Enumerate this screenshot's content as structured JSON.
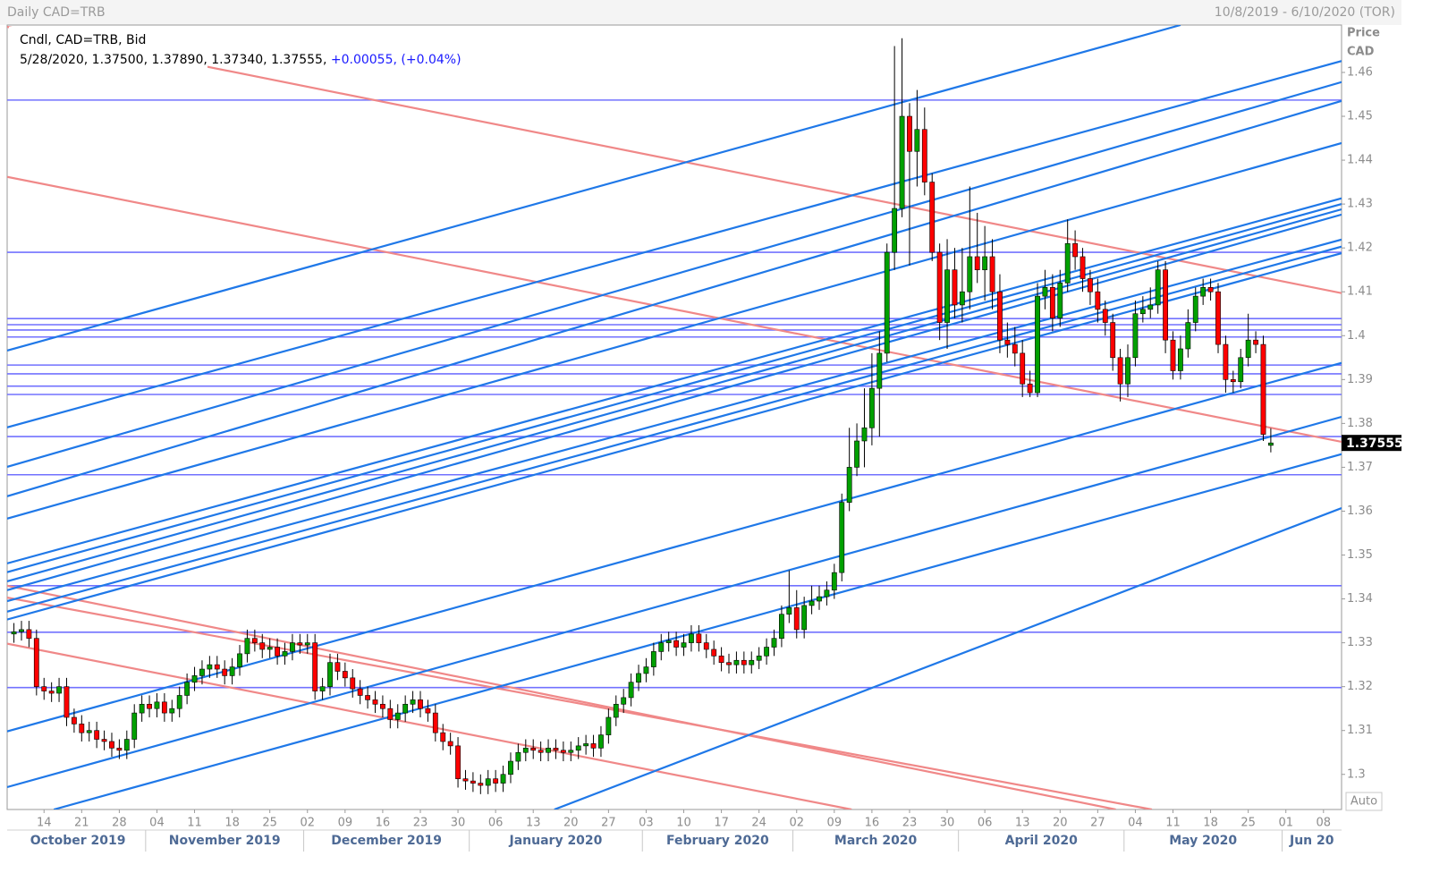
{
  "chart_data": {
    "type": "candlestick",
    "title": "Daily CAD=TRB",
    "subtitle": "10/8/2019 - 6/10/2020 (TOR)",
    "legend_title": "Cndl, CAD=TRB, Bid",
    "legend_text": "5/28/2020, 1.37500, 1.37890, 1.37340, 1.37555,",
    "legend_change": "+0.00055, (+0.04%)",
    "y_label": [
      "Price",
      "CAD"
    ],
    "button": "Auto",
    "up_color": "#00a000",
    "down_color": "#ff0000",
    "hline_color": "#7272ff",
    "trend_color": "#1f78e8",
    "red_trend_color": "#f08888",
    "xlim": [
      -0.9,
      176.4
    ],
    "ylim": [
      1.292,
      1.4708
    ],
    "yticks": [
      1.3,
      1.31,
      1.32,
      1.33,
      1.34,
      1.35,
      1.36,
      1.37,
      1.38,
      1.39,
      1.4,
      1.41,
      1.42,
      1.43,
      1.44,
      1.45,
      1.46
    ],
    "xticks": [
      {
        "value": 4,
        "label": "14"
      },
      {
        "value": 9,
        "label": "21"
      },
      {
        "value": 14,
        "label": "28"
      },
      {
        "value": 19,
        "label": "04"
      },
      {
        "value": 24,
        "label": "11"
      },
      {
        "value": 29,
        "label": "18"
      },
      {
        "value": 34,
        "label": "25"
      },
      {
        "value": 39,
        "label": "02"
      },
      {
        "value": 44,
        "label": "09"
      },
      {
        "value": 49,
        "label": "16"
      },
      {
        "value": 54,
        "label": "23"
      },
      {
        "value": 59,
        "label": "30"
      },
      {
        "value": 64,
        "label": "06"
      },
      {
        "value": 69,
        "label": "13"
      },
      {
        "value": 74,
        "label": "20"
      },
      {
        "value": 79,
        "label": "27"
      },
      {
        "value": 84,
        "label": "03"
      },
      {
        "value": 89,
        "label": "10"
      },
      {
        "value": 94,
        "label": "17"
      },
      {
        "value": 99,
        "label": "24"
      },
      {
        "value": 104,
        "label": "02"
      },
      {
        "value": 109,
        "label": "09"
      },
      {
        "value": 114,
        "label": "16"
      },
      {
        "value": 119,
        "label": "23"
      },
      {
        "value": 124,
        "label": "30"
      },
      {
        "value": 129,
        "label": "06"
      },
      {
        "value": 134,
        "label": "13"
      },
      {
        "value": 139,
        "label": "20"
      },
      {
        "value": 144,
        "label": "27"
      },
      {
        "value": 149,
        "label": "04"
      },
      {
        "value": 154,
        "label": "11"
      },
      {
        "value": 159,
        "label": "18"
      },
      {
        "value": 164,
        "label": "25"
      },
      {
        "value": 169,
        "label": "01"
      },
      {
        "value": 174,
        "label": "08"
      }
    ],
    "months": [
      {
        "value": 0,
        "label": "October 2019"
      },
      {
        "value": 18,
        "label": "November 2019"
      },
      {
        "value": 39,
        "label": "December 2019"
      },
      {
        "value": 61,
        "label": "January 2020"
      },
      {
        "value": 84,
        "label": "February 2020"
      },
      {
        "value": 104,
        "label": "March 2020"
      },
      {
        "value": 126,
        "label": "April 2020"
      },
      {
        "value": 148,
        "label": "May 2020"
      },
      {
        "value": 169,
        "label": "Jun 20"
      }
    ],
    "x": [
      0,
      1,
      2,
      3,
      4,
      5,
      6,
      7,
      8,
      9,
      10,
      11,
      12,
      13,
      14,
      15,
      16,
      17,
      18,
      19,
      20,
      21,
      22,
      23,
      24,
      25,
      26,
      27,
      28,
      29,
      30,
      31,
      32,
      33,
      34,
      35,
      36,
      37,
      38,
      39,
      40,
      41,
      42,
      43,
      44,
      45,
      46,
      47,
      48,
      49,
      50,
      51,
      52,
      53,
      54,
      55,
      56,
      57,
      58,
      59,
      60,
      61,
      62,
      63,
      64,
      65,
      66,
      67,
      68,
      69,
      70,
      71,
      72,
      73,
      74,
      75,
      76,
      77,
      78,
      79,
      80,
      81,
      82,
      83,
      84,
      85,
      86,
      87,
      88,
      89,
      90,
      91,
      92,
      93,
      94,
      95,
      96,
      97,
      98,
      99,
      100,
      101,
      102,
      103,
      104,
      105,
      106,
      107,
      108,
      109,
      110,
      111,
      112,
      113,
      114,
      115,
      116,
      117,
      118,
      119,
      120,
      121,
      122,
      123,
      124,
      125,
      126,
      127,
      128,
      129,
      130,
      131,
      132,
      133,
      134,
      135,
      136,
      137,
      138,
      139,
      140,
      141,
      142,
      143,
      144,
      145,
      146,
      147,
      148,
      149,
      150,
      151,
      152,
      153,
      154,
      155,
      156,
      157,
      158,
      159,
      160,
      161,
      162,
      163,
      164,
      165,
      166,
      167
    ],
    "open": [
      1.332,
      1.3325,
      1.333,
      1.331,
      1.32,
      1.319,
      1.3185,
      1.32,
      1.313,
      1.3115,
      1.3095,
      1.31,
      1.308,
      1.3075,
      1.306,
      1.3055,
      1.308,
      1.314,
      1.316,
      1.315,
      1.3165,
      1.314,
      1.315,
      1.318,
      1.321,
      1.3225,
      1.324,
      1.325,
      1.324,
      1.3225,
      1.3245,
      1.3275,
      1.331,
      1.33,
      1.3285,
      1.329,
      1.327,
      1.328,
      1.33,
      1.3295,
      1.33,
      1.319,
      1.32,
      1.3255,
      1.3235,
      1.322,
      1.3195,
      1.318,
      1.317,
      1.316,
      1.315,
      1.3125,
      1.314,
      1.316,
      1.317,
      1.315,
      1.314,
      1.3095,
      1.3075,
      1.3065,
      1.299,
      1.2985,
      1.298,
      1.2975,
      1.299,
      1.298,
      1.3,
      1.303,
      1.305,
      1.306,
      1.3055,
      1.305,
      1.306,
      1.3055,
      1.305,
      1.3055,
      1.3065,
      1.307,
      1.306,
      1.309,
      1.313,
      1.316,
      1.3175,
      1.321,
      1.323,
      1.3245,
      1.328,
      1.33,
      1.3305,
      1.329,
      1.33,
      1.332,
      1.33,
      1.3285,
      1.327,
      1.3255,
      1.325,
      1.326,
      1.325,
      1.326,
      1.327,
      1.329,
      1.331,
      1.3365,
      1.338,
      1.333,
      1.3385,
      1.3395,
      1.3405,
      1.342,
      1.346,
      1.362,
      1.37,
      1.376,
      1.379,
      1.388,
      1.396,
      1.419,
      1.429,
      1.45,
      1.442,
      1.447,
      1.435,
      1.419,
      1.403,
      1.415,
      1.407,
      1.41,
      1.418,
      1.415,
      1.418,
      1.41,
      1.399,
      1.398,
      1.396,
      1.389,
      1.387,
      1.409,
      1.411,
      1.404,
      1.412,
      1.421,
      1.418,
      1.413,
      1.41,
      1.406,
      1.403,
      1.395,
      1.389,
      1.395,
      1.405,
      1.406,
      1.407,
      1.415,
      1.399,
      1.392,
      1.397,
      1.403,
      1.409,
      1.411,
      1.41,
      1.398,
      1.39,
      1.3895,
      1.395,
      1.399,
      1.398,
      1.375
    ],
    "high": [
      1.3345,
      1.335,
      1.335,
      1.333,
      1.322,
      1.321,
      1.322,
      1.322,
      1.315,
      1.3135,
      1.312,
      1.312,
      1.31,
      1.3095,
      1.308,
      1.31,
      1.316,
      1.318,
      1.318,
      1.3185,
      1.3185,
      1.317,
      1.32,
      1.323,
      1.3245,
      1.326,
      1.327,
      1.327,
      1.326,
      1.3265,
      1.3295,
      1.333,
      1.333,
      1.332,
      1.331,
      1.331,
      1.33,
      1.332,
      1.332,
      1.332,
      1.332,
      1.322,
      1.3275,
      1.3275,
      1.3255,
      1.324,
      1.3215,
      1.32,
      1.319,
      1.318,
      1.317,
      1.316,
      1.318,
      1.319,
      1.319,
      1.317,
      1.316,
      1.3115,
      1.3095,
      1.3085,
      1.301,
      1.3005,
      1.3,
      1.301,
      1.301,
      1.302,
      1.305,
      1.307,
      1.308,
      1.308,
      1.3075,
      1.308,
      1.308,
      1.3075,
      1.3075,
      1.3085,
      1.309,
      1.309,
      1.311,
      1.315,
      1.318,
      1.3195,
      1.323,
      1.325,
      1.3265,
      1.33,
      1.332,
      1.3325,
      1.3325,
      1.332,
      1.334,
      1.334,
      1.332,
      1.3305,
      1.329,
      1.3275,
      1.328,
      1.328,
      1.328,
      1.329,
      1.331,
      1.333,
      1.3385,
      1.3465,
      1.342,
      1.3405,
      1.343,
      1.343,
      1.344,
      1.348,
      1.364,
      1.379,
      1.38,
      1.388,
      1.396,
      1.401,
      1.421,
      1.466,
      1.4678,
      1.453,
      1.456,
      1.452,
      1.437,
      1.421,
      1.422,
      1.42,
      1.42,
      1.434,
      1.428,
      1.425,
      1.422,
      1.414,
      1.403,
      1.402,
      1.399,
      1.392,
      1.412,
      1.415,
      1.414,
      1.415,
      1.4265,
      1.424,
      1.42,
      1.415,
      1.413,
      1.408,
      1.405,
      1.397,
      1.398,
      1.408,
      1.409,
      1.411,
      1.417,
      1.417,
      1.401,
      1.4,
      1.406,
      1.411,
      1.413,
      1.413,
      1.412,
      1.4,
      1.392,
      1.397,
      1.405,
      1.401,
      1.4,
      1.3789
    ],
    "low": [
      1.33,
      1.3305,
      1.329,
      1.318,
      1.317,
      1.3165,
      1.3165,
      1.311,
      1.3095,
      1.3075,
      1.3075,
      1.306,
      1.3055,
      1.304,
      1.3035,
      1.3035,
      1.306,
      1.312,
      1.313,
      1.313,
      1.312,
      1.312,
      1.313,
      1.316,
      1.319,
      1.3205,
      1.322,
      1.322,
      1.3205,
      1.3205,
      1.3225,
      1.3255,
      1.328,
      1.3265,
      1.3265,
      1.325,
      1.325,
      1.326,
      1.3275,
      1.3275,
      1.317,
      1.317,
      1.318,
      1.3215,
      1.32,
      1.3175,
      1.316,
      1.315,
      1.314,
      1.313,
      1.3105,
      1.3105,
      1.312,
      1.314,
      1.313,
      1.312,
      1.3075,
      1.3055,
      1.3045,
      1.297,
      1.2965,
      1.296,
      1.2955,
      1.2955,
      1.296,
      1.296,
      1.298,
      1.301,
      1.303,
      1.3035,
      1.303,
      1.303,
      1.3035,
      1.303,
      1.303,
      1.3035,
      1.3045,
      1.304,
      1.304,
      1.307,
      1.311,
      1.314,
      1.3155,
      1.319,
      1.321,
      1.3225,
      1.326,
      1.328,
      1.327,
      1.327,
      1.328,
      1.328,
      1.3265,
      1.325,
      1.3235,
      1.323,
      1.323,
      1.323,
      1.323,
      1.324,
      1.325,
      1.327,
      1.329,
      1.3345,
      1.331,
      1.331,
      1.3365,
      1.3375,
      1.3385,
      1.34,
      1.344,
      1.36,
      1.368,
      1.37,
      1.375,
      1.377,
      1.394,
      1.415,
      1.427,
      1.416,
      1.434,
      1.432,
      1.417,
      1.399,
      1.397,
      1.404,
      1.403,
      1.406,
      1.412,
      1.408,
      1.406,
      1.396,
      1.395,
      1.393,
      1.386,
      1.386,
      1.386,
      1.406,
      1.401,
      1.402,
      1.41,
      1.415,
      1.41,
      1.407,
      1.403,
      1.4,
      1.392,
      1.385,
      1.386,
      1.393,
      1.403,
      1.404,
      1.405,
      1.396,
      1.39,
      1.39,
      1.395,
      1.401,
      1.407,
      1.408,
      1.396,
      1.387,
      1.387,
      1.388,
      1.393,
      1.396,
      1.376,
      1.3734
    ],
    "close": [
      1.3325,
      1.333,
      1.331,
      1.32,
      1.319,
      1.3185,
      1.32,
      1.313,
      1.3115,
      1.3095,
      1.31,
      1.308,
      1.3075,
      1.306,
      1.3055,
      1.308,
      1.314,
      1.316,
      1.315,
      1.3165,
      1.314,
      1.315,
      1.318,
      1.321,
      1.3225,
      1.324,
      1.325,
      1.324,
      1.3225,
      1.3245,
      1.3275,
      1.331,
      1.33,
      1.3285,
      1.329,
      1.327,
      1.328,
      1.33,
      1.3295,
      1.33,
      1.319,
      1.32,
      1.3255,
      1.3235,
      1.322,
      1.3195,
      1.318,
      1.317,
      1.316,
      1.315,
      1.3125,
      1.314,
      1.316,
      1.317,
      1.315,
      1.314,
      1.3095,
      1.3075,
      1.3065,
      1.299,
      1.2985,
      1.298,
      1.2975,
      1.299,
      1.298,
      1.3,
      1.303,
      1.305,
      1.306,
      1.3055,
      1.305,
      1.306,
      1.3055,
      1.305,
      1.3055,
      1.3065,
      1.307,
      1.306,
      1.309,
      1.313,
      1.316,
      1.3175,
      1.321,
      1.323,
      1.3245,
      1.328,
      1.33,
      1.3305,
      1.329,
      1.33,
      1.332,
      1.33,
      1.3285,
      1.327,
      1.3255,
      1.325,
      1.326,
      1.325,
      1.326,
      1.327,
      1.329,
      1.331,
      1.3365,
      1.338,
      1.333,
      1.3385,
      1.3395,
      1.3405,
      1.342,
      1.346,
      1.362,
      1.37,
      1.376,
      1.379,
      1.388,
      1.396,
      1.419,
      1.429,
      1.45,
      1.442,
      1.447,
      1.435,
      1.419,
      1.403,
      1.415,
      1.407,
      1.41,
      1.418,
      1.415,
      1.418,
      1.41,
      1.399,
      1.398,
      1.396,
      1.389,
      1.387,
      1.409,
      1.411,
      1.404,
      1.412,
      1.421,
      1.418,
      1.413,
      1.41,
      1.406,
      1.403,
      1.395,
      1.389,
      1.395,
      1.405,
      1.406,
      1.407,
      1.415,
      1.399,
      1.392,
      1.397,
      1.403,
      1.409,
      1.411,
      1.41,
      1.398,
      1.39,
      1.3895,
      1.395,
      1.399,
      1.398,
      1.3775,
      1.37555
    ],
    "hlines": [
      1.4537,
      1.419,
      1.4039,
      1.4025,
      1.4013,
      1.3997,
      1.3933,
      1.3913,
      1.3885,
      1.3866,
      1.377,
      1.3683,
      1.343,
      1.3324,
      1.3198
    ],
    "trendlines": [
      {
        "x": [
          -0.9,
          155.0
        ],
        "y": [
          1.3966,
          1.4708
        ]
      },
      {
        "x": [
          -0.9,
          176.4
        ],
        "y": [
          1.3791,
          1.4626
        ]
      },
      {
        "x": [
          -0.9,
          176.4
        ],
        "y": [
          1.3701,
          1.4578
        ]
      },
      {
        "x": [
          -0.9,
          176.4
        ],
        "y": [
          1.3634,
          1.4535
        ]
      },
      {
        "x": [
          -0.9,
          176.4
        ],
        "y": [
          1.3583,
          1.4439
        ]
      },
      {
        "x": [
          -0.9,
          176.4
        ],
        "y": [
          1.3481,
          1.4313
        ]
      },
      {
        "x": [
          -0.9,
          176.4
        ],
        "y": [
          1.3461,
          1.43
        ]
      },
      {
        "x": [
          -0.9,
          176.4
        ],
        "y": [
          1.344,
          1.4288
        ]
      },
      {
        "x": [
          -0.9,
          176.4
        ],
        "y": [
          1.342,
          1.4276
        ]
      },
      {
        "x": [
          -0.9,
          176.4
        ],
        "y": [
          1.3395,
          1.4219
        ]
      },
      {
        "x": [
          -0.9,
          176.4
        ],
        "y": [
          1.3371,
          1.4203
        ]
      },
      {
        "x": [
          -0.9,
          176.4
        ],
        "y": [
          1.3353,
          1.4188
        ]
      },
      {
        "x": [
          -0.9,
          176.4
        ],
        "y": [
          1.3098,
          1.3938
        ]
      },
      {
        "x": [
          -0.9,
          176.4
        ],
        "y": [
          1.2971,
          1.3815
        ]
      },
      {
        "x": [
          5.3,
          176.4
        ],
        "y": [
          1.292,
          1.373
        ]
      },
      {
        "x": [
          71.8,
          176.4
        ],
        "y": [
          1.292,
          1.3607
        ]
      }
    ],
    "red_trendlines": [
      {
        "x": [
          -0.9,
          176.4
        ],
        "y": [
          1.4704,
          1.4097
        ]
      },
      {
        "x": [
          -0.9,
          176.4
        ],
        "y": [
          1.4362,
          1.3758
        ]
      },
      {
        "x": [
          -0.9,
          146.4
        ],
        "y": [
          1.343,
          1.292
        ]
      },
      {
        "x": [
          -0.9,
          151.2
        ],
        "y": [
          1.3403,
          1.292
        ]
      },
      {
        "x": [
          -0.9,
          111.3
        ],
        "y": [
          1.3298,
          1.292
        ]
      }
    ]
  }
}
